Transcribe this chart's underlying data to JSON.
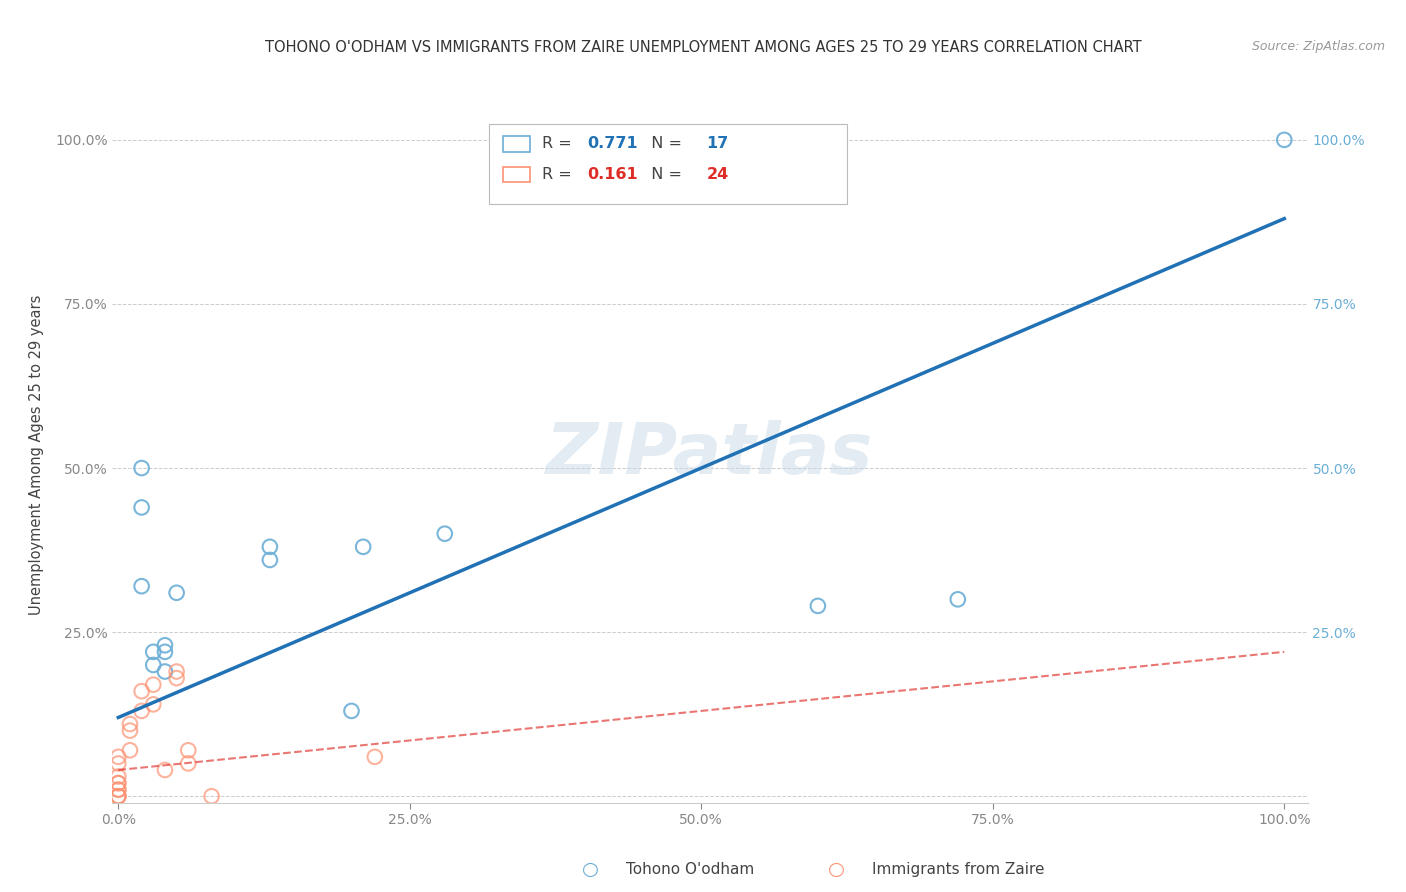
{
  "title": "TOHONO O'ODHAM VS IMMIGRANTS FROM ZAIRE UNEMPLOYMENT AMONG AGES 25 TO 29 YEARS CORRELATION CHART",
  "source": "Source: ZipAtlas.com",
  "ylabel": "Unemployment Among Ages 25 to 29 years",
  "xlabel": "",
  "xlim": [
    -0.005,
    1.02
  ],
  "ylim": [
    -0.01,
    1.05
  ],
  "xtick_labels": [
    "0.0%",
    "25.0%",
    "50.0%",
    "75.0%",
    "100.0%"
  ],
  "xtick_values": [
    0.0,
    0.25,
    0.5,
    0.75,
    1.0
  ],
  "ytick_labels": [
    "",
    "25.0%",
    "50.0%",
    "75.0%",
    "100.0%"
  ],
  "ytick_values": [
    0.0,
    0.25,
    0.5,
    0.75,
    1.0
  ],
  "blue_scatter_x": [
    0.02,
    0.02,
    0.02,
    0.03,
    0.03,
    0.04,
    0.04,
    0.04,
    0.05,
    0.13,
    0.13,
    0.2,
    0.21,
    0.28,
    0.6,
    0.72,
    1.0
  ],
  "blue_scatter_y": [
    0.5,
    0.44,
    0.32,
    0.22,
    0.2,
    0.22,
    0.23,
    0.19,
    0.31,
    0.38,
    0.36,
    0.13,
    0.38,
    0.4,
    0.29,
    0.3,
    1.0
  ],
  "pink_scatter_x": [
    0.0,
    0.0,
    0.0,
    0.0,
    0.0,
    0.0,
    0.0,
    0.0,
    0.0,
    0.0,
    0.01,
    0.01,
    0.01,
    0.02,
    0.02,
    0.03,
    0.03,
    0.04,
    0.05,
    0.05,
    0.06,
    0.06,
    0.08,
    0.22
  ],
  "pink_scatter_y": [
    0.0,
    0.0,
    0.0,
    0.01,
    0.01,
    0.02,
    0.02,
    0.03,
    0.05,
    0.06,
    0.07,
    0.1,
    0.11,
    0.13,
    0.16,
    0.14,
    0.17,
    0.04,
    0.18,
    0.19,
    0.05,
    0.07,
    0.0,
    0.06
  ],
  "blue_line_x": [
    0.0,
    1.0
  ],
  "blue_line_y": [
    0.12,
    0.88
  ],
  "pink_line_x": [
    0.0,
    1.0
  ],
  "pink_line_y": [
    0.04,
    0.22
  ],
  "blue_color": "#6baed6",
  "blue_line_color": "#2171b5",
  "pink_color": "#fc9272",
  "pink_line_color": "#de2d26",
  "R_blue": "0.771",
  "N_blue": "17",
  "R_pink": "0.161",
  "N_pink": "24",
  "legend_label_blue": "Tohono O'odham",
  "legend_label_pink": "Immigrants from Zaire",
  "background_color": "#ffffff",
  "scatter_size": 110,
  "grid_color": "#cccccc",
  "tick_color": "#888888",
  "title_fontsize": 10.5,
  "label_fontsize": 10,
  "legend_fontsize": 11
}
